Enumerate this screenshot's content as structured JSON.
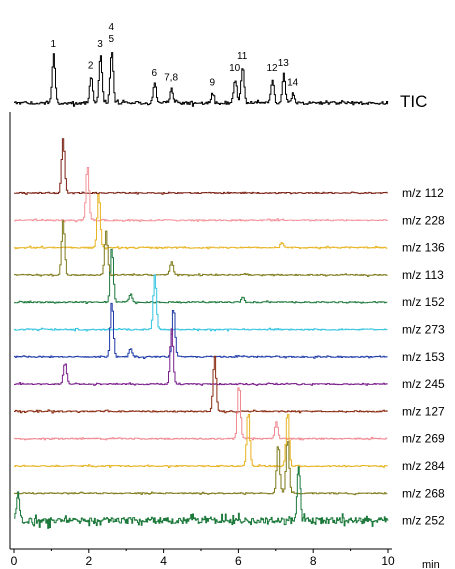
{
  "chart_data": {
    "type": "line",
    "title": "",
    "xlabel": "min",
    "ylabel": "",
    "xlim": [
      0,
      10
    ],
    "x_ticks": [
      "0",
      "2",
      "4",
      "6",
      "8",
      "10"
    ],
    "tic": {
      "name": "TIC",
      "color": "#000000",
      "peaks": [
        {
          "label": "1",
          "x": 1.05,
          "h": 1.0
        },
        {
          "label": "2",
          "x": 2.05,
          "h": 0.55
        },
        {
          "label": "3",
          "x": 2.3,
          "h": 1.0
        },
        {
          "label": "4\n5",
          "x": 2.6,
          "h": 1.1
        },
        {
          "label": "6",
          "x": 3.75,
          "h": 0.4
        },
        {
          "label": "7,8",
          "x": 4.2,
          "h": 0.3
        },
        {
          "label": "9",
          "x": 5.3,
          "h": 0.2
        },
        {
          "label": "10",
          "x": 5.9,
          "h": 0.5
        },
        {
          "label": "11",
          "x": 6.1,
          "h": 0.75
        },
        {
          "label": "12",
          "x": 6.9,
          "h": 0.5
        },
        {
          "label": "13",
          "x": 7.2,
          "h": 0.6
        },
        {
          "label": "14",
          "x": 7.45,
          "h": 0.2
        }
      ]
    },
    "series": [
      {
        "name": "m/z 112",
        "color": "#7a1f12",
        "peaks": [
          {
            "x": 1.3,
            "h": 1.0
          }
        ]
      },
      {
        "name": "m/z 228",
        "color": "#f4939a",
        "peaks": [
          {
            "x": 1.95,
            "h": 1.0
          }
        ]
      },
      {
        "name": "m/z 136",
        "color": "#e8b320",
        "peaks": [
          {
            "x": 2.25,
            "h": 1.0
          },
          {
            "x": 7.15,
            "h": 0.1
          }
        ]
      },
      {
        "name": "m/z 113",
        "color": "#7f7a1a",
        "peaks": [
          {
            "x": 1.3,
            "h": 1.0
          },
          {
            "x": 2.45,
            "h": 0.8
          },
          {
            "x": 4.2,
            "h": 0.25
          }
        ]
      },
      {
        "name": "m/z 152",
        "color": "#1d7a3c",
        "peaks": [
          {
            "x": 2.6,
            "h": 1.0
          },
          {
            "x": 3.1,
            "h": 0.15
          },
          {
            "x": 6.1,
            "h": 0.1
          }
        ]
      },
      {
        "name": "m/z 273",
        "color": "#34c4e0",
        "peaks": [
          {
            "x": 3.75,
            "h": 1.0
          }
        ]
      },
      {
        "name": "m/z 153",
        "color": "#1f3aa8",
        "peaks": [
          {
            "x": 2.6,
            "h": 1.0
          },
          {
            "x": 3.1,
            "h": 0.15
          },
          {
            "x": 4.25,
            "h": 0.9
          }
        ]
      },
      {
        "name": "m/z 245",
        "color": "#7a1f8a",
        "peaks": [
          {
            "x": 1.35,
            "h": 0.4
          },
          {
            "x": 4.2,
            "h": 1.0
          }
        ]
      },
      {
        "name": "m/z 127",
        "color": "#8a2a10",
        "peaks": [
          {
            "x": 5.35,
            "h": 1.0
          }
        ]
      },
      {
        "name": "m/z 269",
        "color": "#f08890",
        "peaks": [
          {
            "x": 6.0,
            "h": 1.0
          },
          {
            "x": 7.0,
            "h": 0.3
          }
        ]
      },
      {
        "name": "m/z 284",
        "color": "#e8b320",
        "peaks": [
          {
            "x": 6.25,
            "h": 1.0
          },
          {
            "x": 7.3,
            "h": 1.0
          }
        ]
      },
      {
        "name": "m/z 268",
        "color": "#7f7a1a",
        "peaks": [
          {
            "x": 7.05,
            "h": 0.9
          },
          {
            "x": 7.3,
            "h": 1.0
          }
        ]
      },
      {
        "name": "m/z 252",
        "color": "#1d7a3c",
        "peaks": [
          {
            "x": 0.1,
            "h": 0.5
          },
          {
            "x": 7.6,
            "h": 1.0
          }
        ]
      }
    ]
  }
}
